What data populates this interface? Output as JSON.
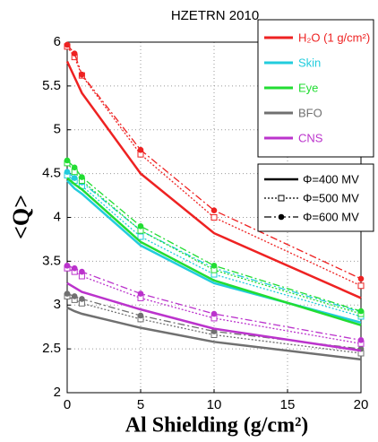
{
  "chart_data": {
    "type": "line",
    "title": "HZETRN 2010",
    "x_label": "Al Shielding (g/cm²)",
    "y_label": "<Q>",
    "x": [
      0,
      0.5,
      1,
      5,
      10,
      20
    ],
    "xlim": [
      0,
      20
    ],
    "xticks": [
      0,
      5,
      10,
      15,
      20
    ],
    "ylim": [
      2,
      6
    ],
    "yticks": [
      2,
      2.5,
      3,
      3.5,
      4,
      4.5,
      5,
      5.5,
      6
    ],
    "grid": true,
    "line_styles": [
      {
        "name": "Φ=400 MV",
        "dash": "solid",
        "marker": "none"
      },
      {
        "name": "Φ=500 MV",
        "dash": "dotted",
        "marker": "square"
      },
      {
        "name": "Φ=600 MV",
        "dash": "dashdot",
        "marker": "circle"
      }
    ],
    "series": [
      {
        "name": "H₂O (1 g/cm²)",
        "color": "#ee2222",
        "curves": [
          {
            "values": [
              5.78,
              5.6,
              5.42,
              4.5,
              3.82,
              3.08
            ]
          },
          {
            "values": [
              5.95,
              5.83,
              5.62,
              4.72,
              4.0,
              3.22
            ]
          },
          {
            "values": [
              5.97,
              5.87,
              5.63,
              4.77,
              4.08,
              3.3
            ]
          }
        ]
      },
      {
        "name": "Skin",
        "color": "#22ccdd",
        "curves": [
          {
            "values": [
              4.42,
              4.33,
              4.27,
              3.68,
              3.25,
              2.8
            ]
          },
          {
            "values": [
              4.48,
              4.42,
              4.36,
              3.78,
              3.35,
              2.87
            ]
          },
          {
            "values": [
              4.52,
              4.45,
              4.4,
              3.85,
              3.42,
              2.92
            ]
          }
        ]
      },
      {
        "name": "Eye",
        "color": "#22dd33",
        "curves": [
          {
            "values": [
              4.45,
              4.38,
              4.32,
              3.72,
              3.28,
              2.77
            ]
          },
          {
            "values": [
              4.62,
              4.52,
              4.42,
              3.85,
              3.4,
              2.9
            ]
          },
          {
            "values": [
              4.65,
              4.57,
              4.46,
              3.9,
              3.45,
              2.93
            ]
          }
        ]
      },
      {
        "name": "BFO",
        "color": "#707070",
        "curves": [
          {
            "values": [
              2.97,
              2.93,
              2.9,
              2.74,
              2.58,
              2.38
            ]
          },
          {
            "values": [
              3.1,
              3.06,
              3.02,
              2.84,
              2.66,
              2.45
            ]
          },
          {
            "values": [
              3.13,
              3.1,
              3.07,
              2.88,
              2.7,
              2.5
            ]
          }
        ]
      },
      {
        "name": "CNS",
        "color": "#bb33cc",
        "curves": [
          {
            "values": [
              3.25,
              3.2,
              3.15,
              2.95,
              2.73,
              2.48
            ]
          },
          {
            "values": [
              3.42,
              3.38,
              3.33,
              3.08,
              2.85,
              2.56
            ]
          },
          {
            "values": [
              3.45,
              3.42,
              3.38,
              3.13,
              2.9,
              2.6
            ]
          }
        ]
      }
    ]
  }
}
